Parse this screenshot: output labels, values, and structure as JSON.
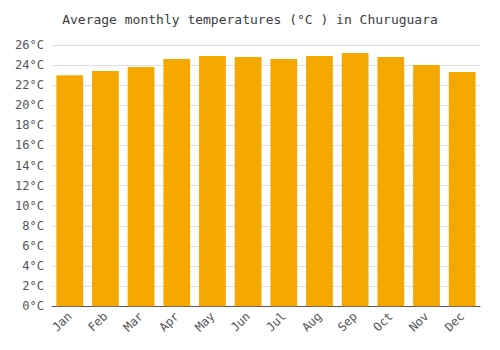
{
  "chart_data": {
    "type": "bar",
    "title": "Average monthly temperatures (°C ) in Churuguara",
    "categories": [
      "Jan",
      "Feb",
      "Mar",
      "Apr",
      "May",
      "Jun",
      "Jul",
      "Aug",
      "Sep",
      "Oct",
      "Nov",
      "Dec"
    ],
    "values": [
      23.0,
      23.4,
      23.8,
      24.6,
      24.9,
      24.8,
      24.6,
      24.9,
      25.2,
      24.8,
      24.0,
      23.3
    ],
    "color": "#F5A800",
    "ylim": [
      0,
      26
    ],
    "yticks": [
      {
        "value": 0,
        "label": "0°C"
      },
      {
        "value": 2,
        "label": "2°C"
      },
      {
        "value": 4,
        "label": "4°C"
      },
      {
        "value": 6,
        "label": "6°C"
      },
      {
        "value": 8,
        "label": "8°C"
      },
      {
        "value": 10,
        "label": "10°C"
      },
      {
        "value": 12,
        "label": "12°C"
      },
      {
        "value": 14,
        "label": "14°C"
      },
      {
        "value": 16,
        "label": "16°C"
      },
      {
        "value": 18,
        "label": "18°C"
      },
      {
        "value": 20,
        "label": "20°C"
      },
      {
        "value": 22,
        "label": "22°C"
      },
      {
        "value": 24,
        "label": "24°C"
      },
      {
        "value": 26,
        "label": "26°C"
      }
    ],
    "grid": true
  }
}
